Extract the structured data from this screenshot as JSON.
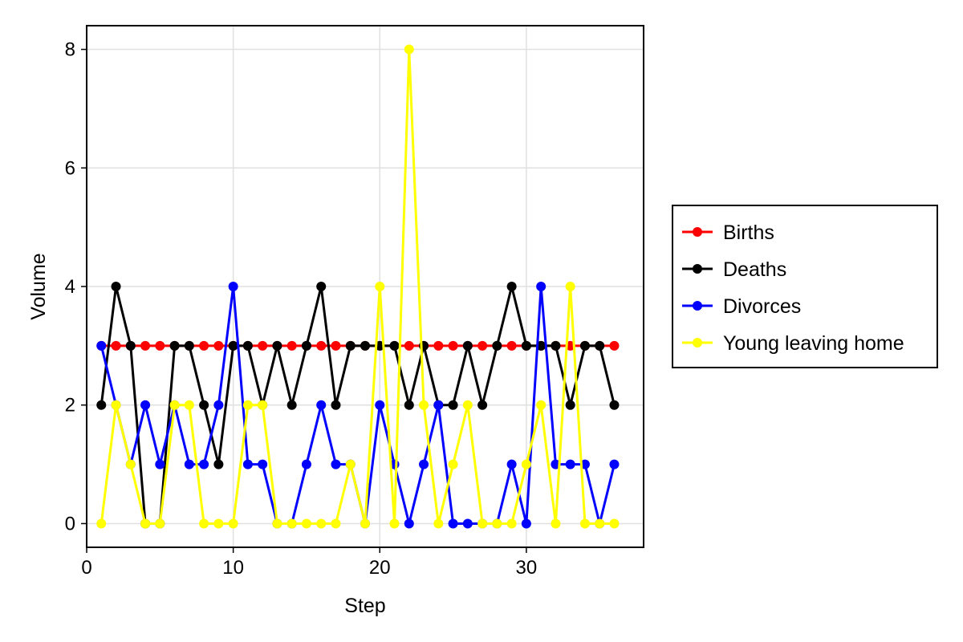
{
  "chart_data": {
    "type": "line",
    "xlabel": "Step",
    "ylabel": "Volume",
    "xlim": [
      0,
      38
    ],
    "ylim": [
      -0.4,
      8.4
    ],
    "xticks": [
      0,
      10,
      20,
      30
    ],
    "yticks": [
      0,
      2,
      4,
      6,
      8
    ],
    "grid": true,
    "legend_position": "right",
    "x": [
      1,
      2,
      3,
      4,
      5,
      6,
      7,
      8,
      9,
      10,
      11,
      12,
      13,
      14,
      15,
      16,
      17,
      18,
      19,
      20,
      21,
      22,
      23,
      24,
      25,
      26,
      27,
      28,
      29,
      30,
      31,
      32,
      33,
      34,
      35,
      36
    ],
    "series": [
      {
        "name": "Births",
        "color": "#ff0000",
        "values": [
          3,
          3,
          3,
          3,
          3,
          3,
          3,
          3,
          3,
          3,
          3,
          3,
          3,
          3,
          3,
          3,
          3,
          3,
          3,
          3,
          3,
          3,
          3,
          3,
          3,
          3,
          3,
          3,
          3,
          3,
          3,
          3,
          3,
          3,
          3,
          3
        ]
      },
      {
        "name": "Deaths",
        "color": "#000000",
        "values": [
          2,
          4,
          3,
          0,
          0,
          3,
          3,
          2,
          1,
          3,
          3,
          2,
          3,
          2,
          3,
          4,
          2,
          3,
          3,
          3,
          3,
          2,
          3,
          2,
          2,
          3,
          2,
          3,
          4,
          3,
          3,
          3,
          2,
          3,
          3,
          2
        ]
      },
      {
        "name": "Divorces",
        "color": "#0000ff",
        "values": [
          3,
          2,
          1,
          2,
          1,
          2,
          1,
          1,
          2,
          4,
          1,
          1,
          0,
          0,
          1,
          2,
          1,
          1,
          0,
          2,
          1,
          0,
          1,
          2,
          0,
          0,
          0,
          0,
          1,
          0,
          4,
          1,
          1,
          1,
          0,
          1
        ]
      },
      {
        "name": "Young leaving home",
        "color": "#ffff00",
        "values": [
          0,
          2,
          1,
          0,
          0,
          2,
          2,
          0,
          0,
          0,
          2,
          2,
          0,
          0,
          0,
          0,
          0,
          1,
          0,
          4,
          0,
          8,
          2,
          0,
          1,
          2,
          0,
          0,
          0,
          1,
          2,
          0,
          4,
          0,
          0,
          0
        ]
      }
    ]
  }
}
